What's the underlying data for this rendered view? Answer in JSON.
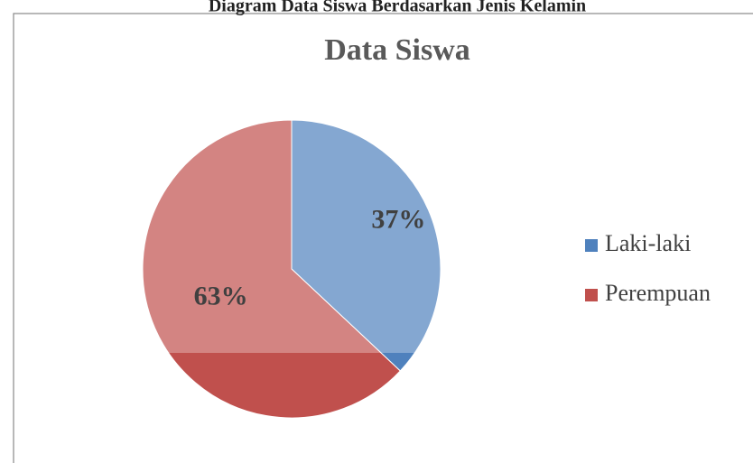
{
  "chart_data": {
    "type": "pie",
    "caption": "Diagram Data Siswa Berdasarkan Jenis Kelamin",
    "title": "Data Siswa",
    "categories": [
      "Laki-laki",
      "Perempuan"
    ],
    "values": [
      37,
      63
    ],
    "value_labels": [
      "37%",
      "63%"
    ],
    "colors": [
      "#4f81bd",
      "#c0504d"
    ],
    "legend": "right"
  }
}
